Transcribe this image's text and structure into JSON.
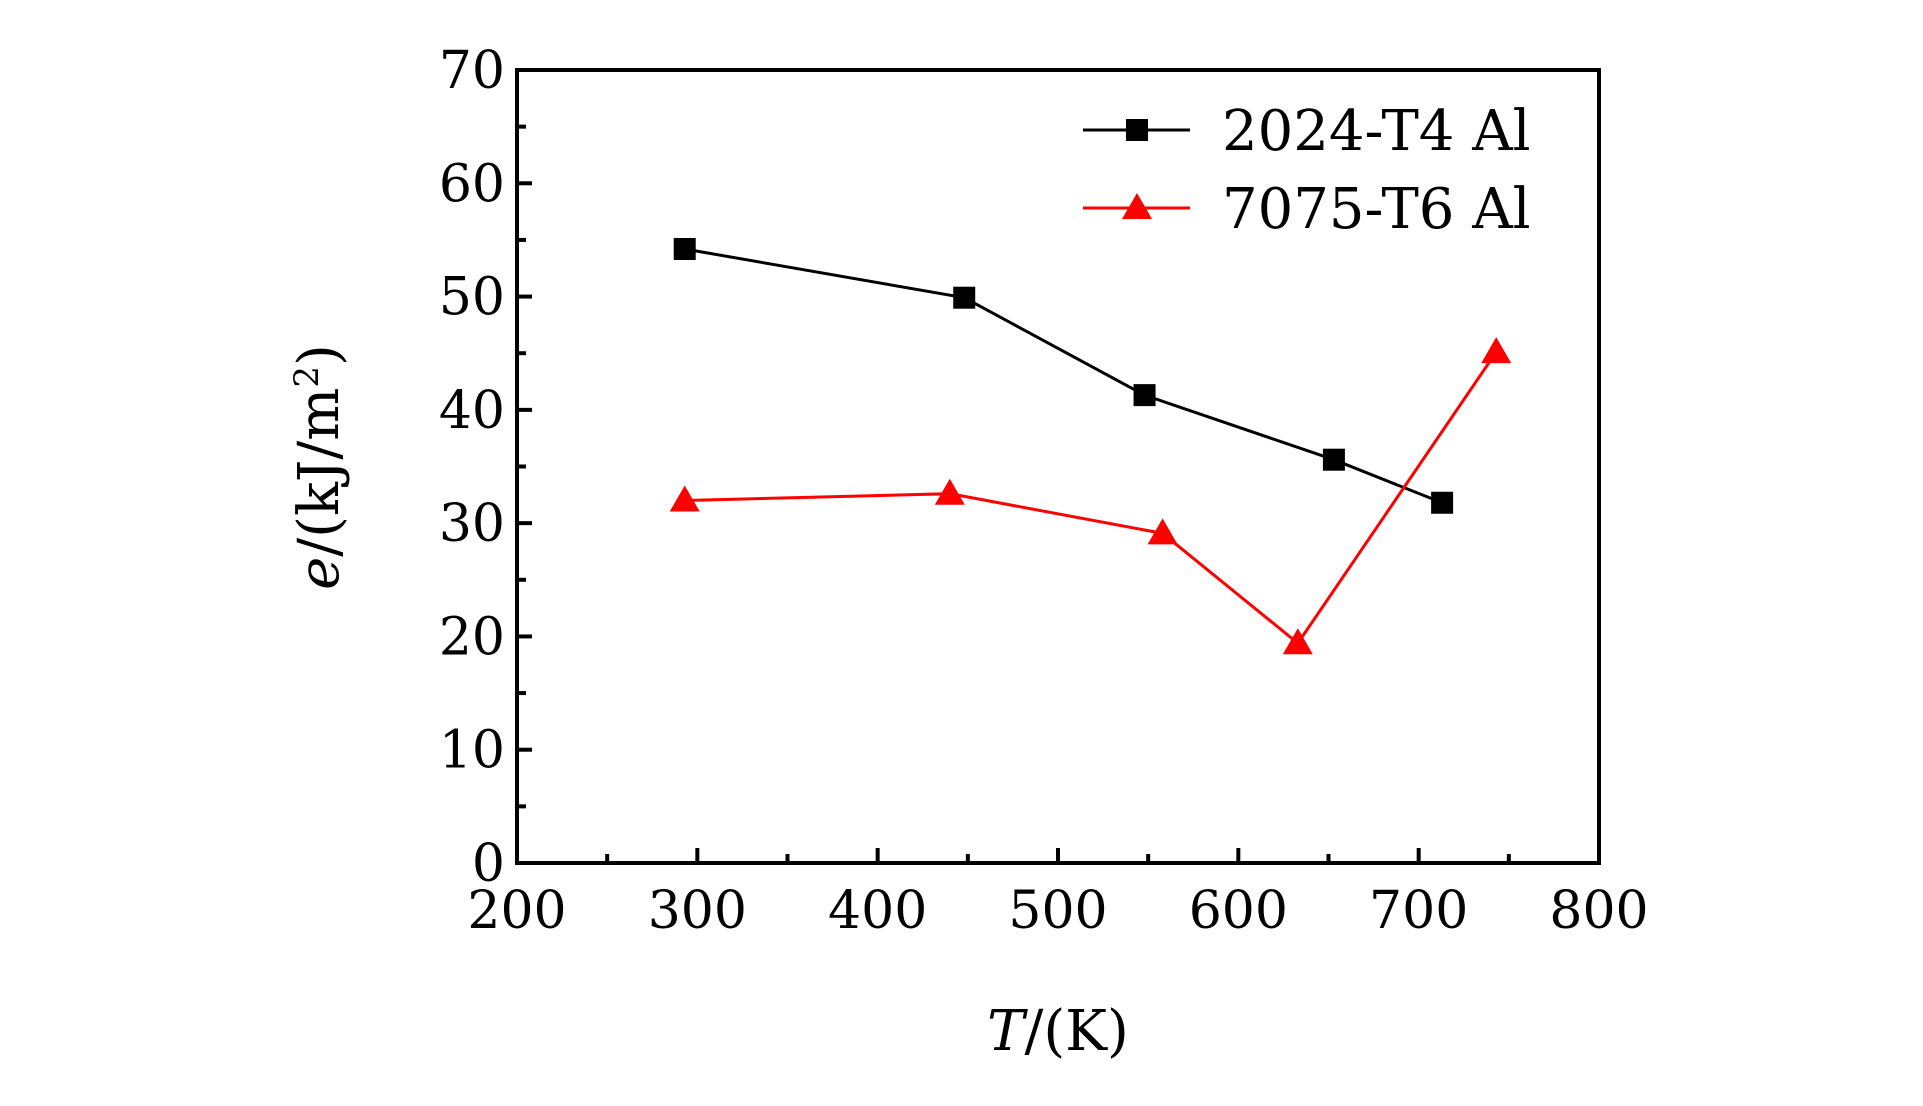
{
  "chart_data": {
    "type": "line",
    "title": "",
    "xlabel": {
      "var": "T",
      "unit": "/(K)"
    },
    "ylabel": {
      "var": "e",
      "unit": "/(kJ/m",
      "sup": "2",
      "close": ")"
    },
    "xlim": [
      200,
      800
    ],
    "ylim": [
      0,
      70
    ],
    "xticks": [
      200,
      300,
      400,
      500,
      600,
      700,
      800
    ],
    "yticks": [
      0,
      10,
      20,
      30,
      40,
      50,
      60,
      70
    ],
    "grid": false,
    "legend_position": "top-right",
    "series": [
      {
        "name": "2024-T4 Al",
        "color": "#000000",
        "marker": "square",
        "x": [
          293,
          448,
          548,
          653,
          713
        ],
        "y": [
          54.2,
          49.9,
          41.3,
          35.6,
          31.8
        ]
      },
      {
        "name": "7075-T6 Al",
        "color": "#ff0000",
        "marker": "triangle",
        "x": [
          293,
          440,
          558,
          633,
          743
        ],
        "y": [
          32.0,
          32.6,
          29.1,
          19.4,
          45.1
        ]
      }
    ]
  }
}
